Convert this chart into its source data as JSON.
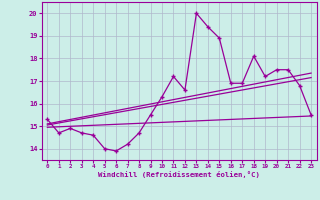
{
  "xlabel": "Windchill (Refroidissement éolien,°C)",
  "background_color": "#cceee8",
  "grid_color": "#b0b8cc",
  "line_color": "#990099",
  "xlim": [
    -0.5,
    23.5
  ],
  "ylim": [
    13.5,
    20.5
  ],
  "yticks": [
    14,
    15,
    16,
    17,
    18,
    19,
    20
  ],
  "xticks": [
    0,
    1,
    2,
    3,
    4,
    5,
    6,
    7,
    8,
    9,
    10,
    11,
    12,
    13,
    14,
    15,
    16,
    17,
    18,
    19,
    20,
    21,
    22,
    23
  ],
  "series1": [
    15.3,
    14.7,
    14.9,
    14.7,
    14.6,
    14.0,
    13.9,
    14.2,
    14.7,
    15.5,
    16.3,
    17.2,
    16.6,
    20.0,
    19.4,
    18.9,
    16.9,
    16.9,
    18.1,
    17.2,
    17.5,
    17.5,
    16.8,
    15.5
  ],
  "series2_x": [
    0,
    23
  ],
  "series2_y": [
    14.95,
    15.45
  ],
  "series3_x": [
    0,
    23
  ],
  "series3_y": [
    15.05,
    17.15
  ],
  "series4_x": [
    0,
    23
  ],
  "series4_y": [
    15.1,
    17.35
  ]
}
